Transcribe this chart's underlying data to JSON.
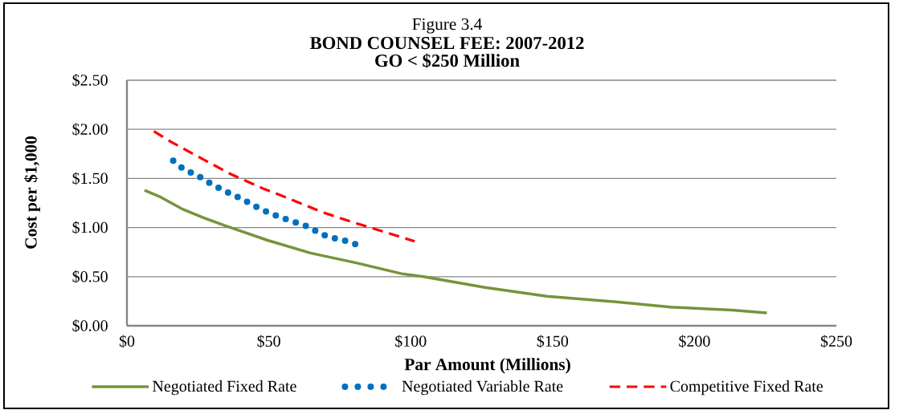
{
  "chart_data": {
    "type": "line",
    "annotations": [
      "Figure 3.4"
    ],
    "title": "BOND COUNSEL FEE: 2007-2012",
    "subtitle": "GO < $250 Million",
    "xlabel": "Par Amount (Millions)",
    "ylabel": "Cost per $1,000",
    "xlim": [
      0,
      250
    ],
    "ylim": [
      0,
      2.5
    ],
    "xticks": [
      {
        "value": 0,
        "label": "$0"
      },
      {
        "value": 50,
        "label": "$50"
      },
      {
        "value": 100,
        "label": "$100"
      },
      {
        "value": 150,
        "label": "$150"
      },
      {
        "value": 200,
        "label": "$200"
      },
      {
        "value": 250,
        "label": "$250"
      }
    ],
    "yticks": [
      {
        "value": 0,
        "label": "$0.00"
      },
      {
        "value": 0.5,
        "label": "$0.50"
      },
      {
        "value": 1,
        "label": "$1.00"
      },
      {
        "value": 1.5,
        "label": "$1.50"
      },
      {
        "value": 2,
        "label": "$2.00"
      },
      {
        "value": 2.5,
        "label": "$2.50"
      }
    ],
    "grid": "y",
    "legend": "bottom",
    "series": [
      {
        "name": "Negotiated Fixed Rate",
        "color": "#77933c",
        "line_style": "solid",
        "x": [
          6.2,
          11.9,
          19.4,
          27.0,
          34.5,
          49.6,
          64.7,
          80.8,
          96.8,
          104.4,
          126.2,
          148,
          169.8,
          191.6,
          213.3,
          225.5
        ],
        "values": [
          1.38,
          1.31,
          1.19,
          1.1,
          1.02,
          0.87,
          0.74,
          0.64,
          0.53,
          0.5,
          0.39,
          0.3,
          0.25,
          0.19,
          0.16,
          0.13
        ]
      },
      {
        "name": "Negotiated Variable Rate",
        "color": "#0070c0",
        "line_style": "dotted",
        "x": [
          16.3,
          19.3,
          23.2,
          26.7,
          29.9,
          33.9,
          37.7,
          41.3,
          44.9,
          48.6,
          52.7,
          56.5,
          60.7,
          64.6,
          68.0,
          71.8,
          76.4,
          80.5
        ],
        "values": [
          1.68,
          1.61,
          1.55,
          1.5,
          1.44,
          1.38,
          1.33,
          1.28,
          1.22,
          1.17,
          1.12,
          1.08,
          1.04,
          1.0,
          0.94,
          0.9,
          0.87,
          0.83
        ]
      },
      {
        "name": "Competitive Fixed Rate",
        "color": "#ff0000",
        "line_style": "dashed",
        "x": [
          9.5,
          15.7,
          26.5,
          36.9,
          47.8,
          56.7,
          68.5,
          77.9,
          90.2,
          101.4
        ],
        "values": [
          1.98,
          1.87,
          1.7,
          1.54,
          1.4,
          1.3,
          1.16,
          1.07,
          0.96,
          0.86
        ]
      }
    ]
  }
}
